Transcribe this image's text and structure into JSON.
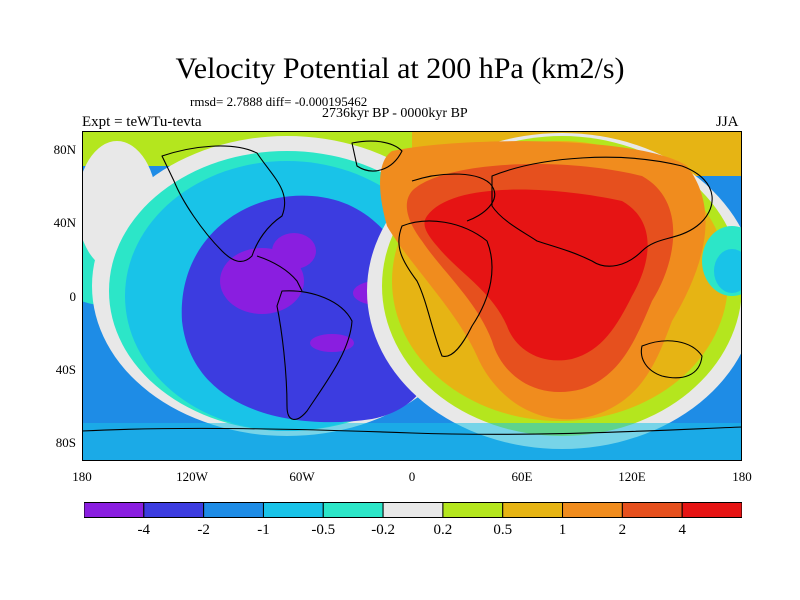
{
  "title": "Velocity Potential at 200 hPa (km2/s)",
  "stats": "rmsd= 2.7888  diff= -0.000195462",
  "period": "2736kyr BP - 0000kyr BP",
  "experiment": "Expt = teWTu-tevta",
  "season": "JJA",
  "lat_labels": [
    "80N",
    "40N",
    "0",
    "40S",
    "80S"
  ],
  "lon_labels": [
    "180",
    "120W",
    "60W",
    "0",
    "60E",
    "120E",
    "180"
  ],
  "colorbar": {
    "labels": [
      "-4",
      "-2",
      "-1",
      "-0.5",
      "-0.2",
      "0.2",
      "0.5",
      "1",
      "2",
      "4"
    ],
    "colors": [
      "#8a1ee0",
      "#3c3ce0",
      "#1e8ce6",
      "#19c3e8",
      "#2ce6c8",
      "#e8e8e8",
      "#b4e61e",
      "#e6b414",
      "#f08c1e",
      "#e6501e",
      "#e61414"
    ]
  }
}
